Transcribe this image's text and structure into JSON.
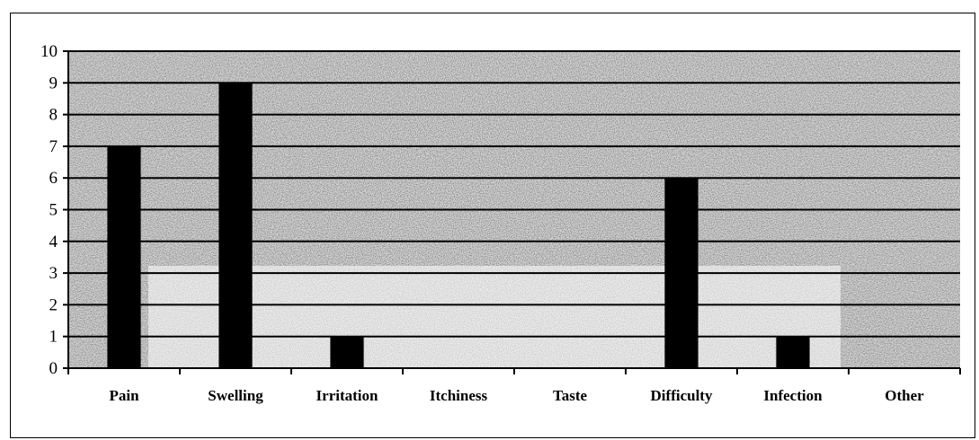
{
  "chart_data": {
    "type": "bar",
    "title": "",
    "xlabel": "",
    "ylabel": "",
    "categories": [
      "Pain",
      "Swelling",
      "Irritation",
      "Itchiness",
      "Taste",
      "Difficulty",
      "Infection",
      "Other"
    ],
    "values": [
      7,
      9,
      1,
      0,
      0,
      6,
      1,
      0
    ],
    "ylim": [
      0,
      10
    ],
    "yticks": [
      "0",
      "1",
      "2",
      "3",
      "4",
      "5",
      "6",
      "7",
      "8",
      "9",
      "10"
    ],
    "grid": true,
    "legend": "none",
    "colors": {
      "bar": "#000000",
      "plot_background": "#bdbdbd",
      "gridline": "#000000"
    }
  }
}
